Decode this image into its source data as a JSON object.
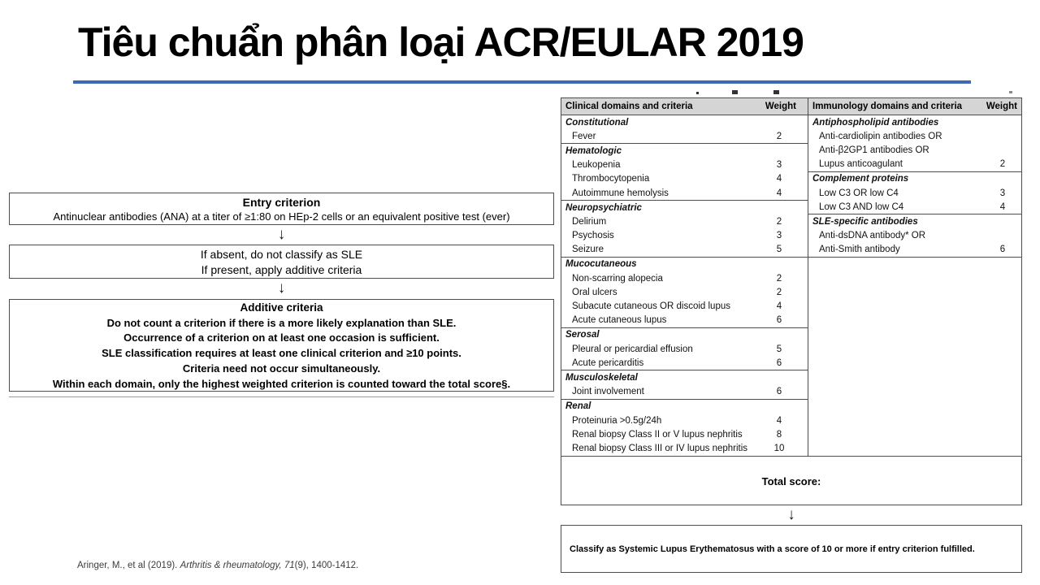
{
  "slide": {
    "title": "Tiêu chuẩn phân loại ACR/EULAR 2019",
    "accent_color": "#3e68b2"
  },
  "flowchart": {
    "arrow_glyph": "↓",
    "entry_box": {
      "heading": "Entry criterion",
      "body": "Antinuclear antibodies (ANA) at a titer of ≥1:80 on HEp-2 cells or an equivalent positive test (ever)"
    },
    "decision_box": {
      "line1": "If absent, do not classify as SLE",
      "line2": "If present, apply additive criteria"
    },
    "additive_box": {
      "heading": "Additive criteria",
      "lines": [
        "Do not count a criterion if there is a more likely explanation than SLE.",
        "Occurrence of a criterion on at least one occasion is sufficient.",
        "SLE classification requires at least one clinical criterion and ≥10 points.",
        "Criteria need not occur simultaneously.",
        "Within each domain, only the highest weighted criterion is counted toward the total score§."
      ]
    }
  },
  "criteria_table": {
    "headers": {
      "clinical": "Clinical domains and criteria",
      "clinical_weight": "Weight",
      "immunology": "Immunology domains and criteria",
      "immunology_weight": "Weight"
    },
    "clinical_groups": [
      {
        "domain": "Constitutional",
        "items": [
          {
            "label": "Fever",
            "weight": "2"
          }
        ]
      },
      {
        "domain": "Hematologic",
        "items": [
          {
            "label": "Leukopenia",
            "weight": "3"
          },
          {
            "label": "Thrombocytopenia",
            "weight": "4"
          },
          {
            "label": "Autoimmune hemolysis",
            "weight": "4"
          }
        ]
      },
      {
        "domain": "Neuropsychiatric",
        "items": [
          {
            "label": "Delirium",
            "weight": "2"
          },
          {
            "label": "Psychosis",
            "weight": "3"
          },
          {
            "label": "Seizure",
            "weight": "5"
          }
        ]
      },
      {
        "domain": "Mucocutaneous",
        "items": [
          {
            "label": "Non-scarring alopecia",
            "weight": "2"
          },
          {
            "label": "Oral ulcers",
            "weight": "2"
          },
          {
            "label": "Subacute cutaneous OR discoid lupus",
            "weight": "4"
          },
          {
            "label": "Acute cutaneous lupus",
            "weight": "6"
          }
        ]
      },
      {
        "domain": "Serosal",
        "items": [
          {
            "label": "Pleural or pericardial effusion",
            "weight": "5"
          },
          {
            "label": "Acute pericarditis",
            "weight": "6"
          }
        ]
      },
      {
        "domain": "Musculoskeletal",
        "items": [
          {
            "label": "Joint involvement",
            "weight": "6"
          }
        ]
      },
      {
        "domain": "Renal",
        "items": [
          {
            "label": "Proteinuria >0.5g/24h",
            "weight": "4"
          },
          {
            "label": "Renal biopsy Class II or V lupus nephritis",
            "weight": "8"
          },
          {
            "label": "Renal biopsy Class III or IV lupus nephritis",
            "weight": "10"
          }
        ]
      }
    ],
    "immunology_groups": [
      {
        "domain": "Antiphospholipid antibodies",
        "items": [
          {
            "label": "Anti-cardiolipin antibodies OR",
            "weight": ""
          },
          {
            "label": "Anti-β2GP1 antibodies OR",
            "weight": ""
          },
          {
            "label": "Lupus anticoagulant",
            "weight": "2"
          }
        ]
      },
      {
        "domain": "Complement proteins",
        "items": [
          {
            "label": "Low C3 OR low C4",
            "weight": "3"
          },
          {
            "label": "Low C3 AND low C4",
            "weight": "4"
          }
        ]
      },
      {
        "domain": "SLE-specific antibodies",
        "items": [
          {
            "label": "Anti-dsDNA antibody* OR",
            "weight": ""
          },
          {
            "label": "Anti-Smith antibody",
            "weight": "6"
          }
        ]
      }
    ],
    "total_score_label": "Total score:",
    "arrow_glyph": "↓",
    "classification": "Classify as Systemic Lupus Erythematosus with a score of 10 or more if entry criterion fulfilled."
  },
  "citation": {
    "pre": "Aringer, M., et al (2019). ",
    "journal": "Arthritis & rheumatology, 71",
    "tail": "(9), 1400-1412."
  }
}
